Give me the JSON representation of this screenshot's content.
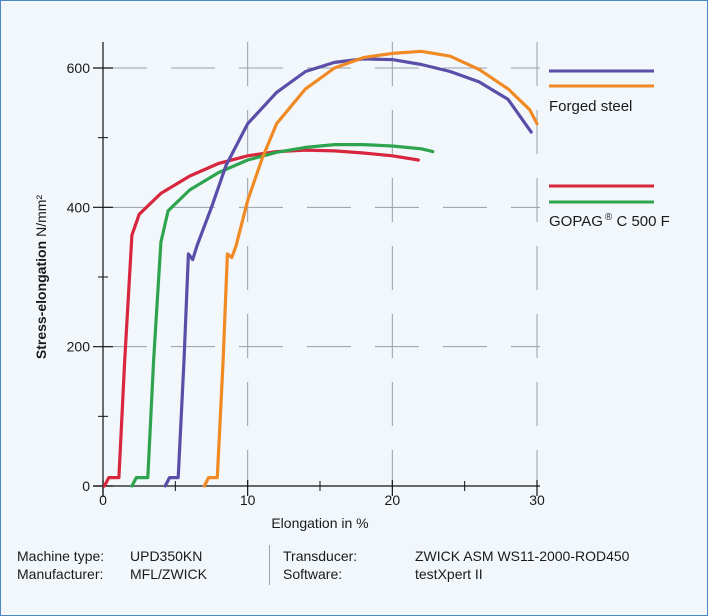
{
  "chart_data": {
    "type": "line",
    "xlabel": "Elongation in %",
    "ylabel_bold": "Stress-elongation",
    "ylabel_unit": "N/mm²",
    "xlim": [
      0,
      30
    ],
    "ylim": [
      0,
      650
    ],
    "x_ticks": [
      "0",
      "10",
      "20",
      "30"
    ],
    "y_ticks": [
      "0",
      "200",
      "400",
      "600"
    ],
    "grid": "dashed",
    "legend": [
      {
        "label": "Forged steel",
        "colors": [
          "#5b4ea8",
          "#f08a24"
        ]
      },
      {
        "label_main": "GOPAG",
        "label_sup": "®",
        "label_rest": " C 500 F",
        "colors": [
          "#d7263d",
          "#2ea44f"
        ]
      }
    ],
    "series": [
      {
        "color": "#d7263d",
        "points": [
          [
            0.1,
            0
          ],
          [
            0.4,
            12
          ],
          [
            1.1,
            12
          ],
          [
            1.5,
            180
          ],
          [
            2.0,
            360
          ],
          [
            2.5,
            390
          ],
          [
            4,
            420
          ],
          [
            6,
            445
          ],
          [
            8,
            463
          ],
          [
            10,
            474
          ],
          [
            12,
            480
          ],
          [
            14,
            482
          ],
          [
            16,
            481
          ],
          [
            18,
            478
          ],
          [
            20,
            474
          ],
          [
            21.8,
            468
          ]
        ]
      },
      {
        "color": "#2ea44f",
        "points": [
          [
            2.0,
            0
          ],
          [
            2.3,
            12
          ],
          [
            3.1,
            12
          ],
          [
            3.5,
            180
          ],
          [
            4.0,
            350
          ],
          [
            4.5,
            395
          ],
          [
            6,
            425
          ],
          [
            8,
            450
          ],
          [
            10,
            468
          ],
          [
            12,
            479
          ],
          [
            14,
            486
          ],
          [
            16,
            490
          ],
          [
            18,
            490
          ],
          [
            20,
            488
          ],
          [
            22,
            484
          ],
          [
            22.8,
            480
          ]
        ]
      },
      {
        "color": "#5b4ea8",
        "points": [
          [
            4.3,
            0
          ],
          [
            4.6,
            12
          ],
          [
            5.2,
            12
          ],
          [
            5.6,
            180
          ],
          [
            5.9,
            333
          ],
          [
            6.2,
            325
          ],
          [
            6.5,
            345
          ],
          [
            7.5,
            400
          ],
          [
            8.5,
            460
          ],
          [
            10,
            520
          ],
          [
            12,
            565
          ],
          [
            14,
            595
          ],
          [
            16,
            608
          ],
          [
            18,
            613
          ],
          [
            20,
            612
          ],
          [
            22,
            605
          ],
          [
            24,
            595
          ],
          [
            26,
            580
          ],
          [
            28,
            555
          ],
          [
            29.6,
            508
          ]
        ]
      },
      {
        "color": "#f08a24",
        "points": [
          [
            7.0,
            0
          ],
          [
            7.3,
            12
          ],
          [
            7.9,
            12
          ],
          [
            8.3,
            180
          ],
          [
            8.6,
            333
          ],
          [
            8.9,
            328
          ],
          [
            9.2,
            345
          ],
          [
            10,
            410
          ],
          [
            11,
            470
          ],
          [
            12,
            520
          ],
          [
            14,
            570
          ],
          [
            16,
            600
          ],
          [
            18,
            615
          ],
          [
            20,
            621
          ],
          [
            22,
            624
          ],
          [
            24,
            617
          ],
          [
            26,
            598
          ],
          [
            28,
            570
          ],
          [
            29.5,
            540
          ],
          [
            30.0,
            520
          ]
        ]
      }
    ]
  },
  "footer": {
    "machine_type_label": "Machine type:",
    "machine_type_value": "UPD350KN",
    "manufacturer_label": "Manufacturer:",
    "manufacturer_value": "MFL/ZWICK",
    "transducer_label": "Transducer:",
    "transducer_value": "ZWICK ASM WS11-2000-ROD450",
    "software_label": "Software:",
    "software_value": "testXpert II"
  }
}
